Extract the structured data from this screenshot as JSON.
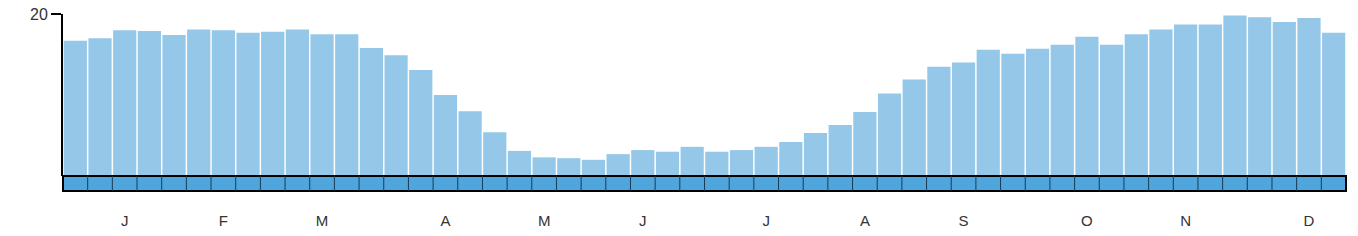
{
  "chart_data": {
    "type": "bar",
    "categories": [
      null,
      null,
      "J",
      null,
      null,
      null,
      "F",
      null,
      null,
      null,
      "M",
      null,
      null,
      null,
      null,
      "A",
      null,
      null,
      null,
      "M",
      null,
      null,
      null,
      "J",
      null,
      null,
      null,
      null,
      "J",
      null,
      null,
      null,
      "A",
      null,
      null,
      null,
      "S",
      null,
      null,
      null,
      null,
      "O",
      null,
      null,
      null,
      "N",
      null,
      null,
      null,
      null,
      "D",
      null
    ],
    "values": [
      16.7,
      17.0,
      18.0,
      17.9,
      17.4,
      18.1,
      18.0,
      17.7,
      17.8,
      18.1,
      17.5,
      17.5,
      15.8,
      14.9,
      13.1,
      10.0,
      8.0,
      5.4,
      3.1,
      2.3,
      2.2,
      2.0,
      2.7,
      3.2,
      3.0,
      3.6,
      3.0,
      3.2,
      3.6,
      4.2,
      5.3,
      6.3,
      7.9,
      10.2,
      11.9,
      13.5,
      14.0,
      15.6,
      15.1,
      15.7,
      16.2,
      17.2,
      16.2,
      17.5,
      18.1,
      18.7,
      18.7,
      19.8,
      19.6,
      19.0,
      19.5,
      17.7
    ],
    "color": "#95c7e9",
    "ylim": [
      0,
      20
    ],
    "yticks": [
      20
    ],
    "grid": false
  }
}
